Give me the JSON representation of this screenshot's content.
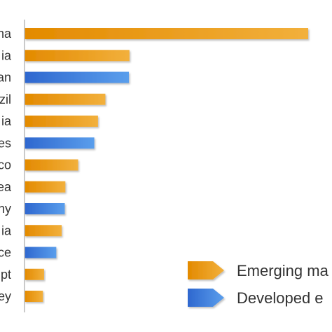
{
  "chart_data": {
    "type": "bar",
    "orientation": "horizontal",
    "categories": [
      "na",
      "ia",
      "an",
      "zil",
      "ia",
      "es",
      "co",
      "ea",
      "ny",
      "ia",
      "ce",
      "pt",
      "ey"
    ],
    "values": [
      100,
      37,
      36.8,
      28.5,
      25.9,
      24.6,
      18.9,
      14.4,
      14.2,
      13.1,
      11.2,
      6.9,
      6.5
    ],
    "groups": [
      "emerging",
      "emerging",
      "developed",
      "emerging",
      "emerging",
      "developed",
      "emerging",
      "emerging",
      "developed",
      "emerging",
      "developed",
      "emerging",
      "emerging"
    ],
    "xlim": [
      0,
      100
    ],
    "grid": false,
    "legend": {
      "position": "bottom-right",
      "entries": [
        {
          "key": "emerging",
          "label": "Emerging ma"
        },
        {
          "key": "developed",
          "label": "Developed e"
        }
      ]
    },
    "colors": {
      "emerging": [
        "#E38A00",
        "#F2B03C"
      ],
      "developed": [
        "#2E67CF",
        "#5A9EEC"
      ],
      "axis": "#B8B8B8"
    }
  }
}
